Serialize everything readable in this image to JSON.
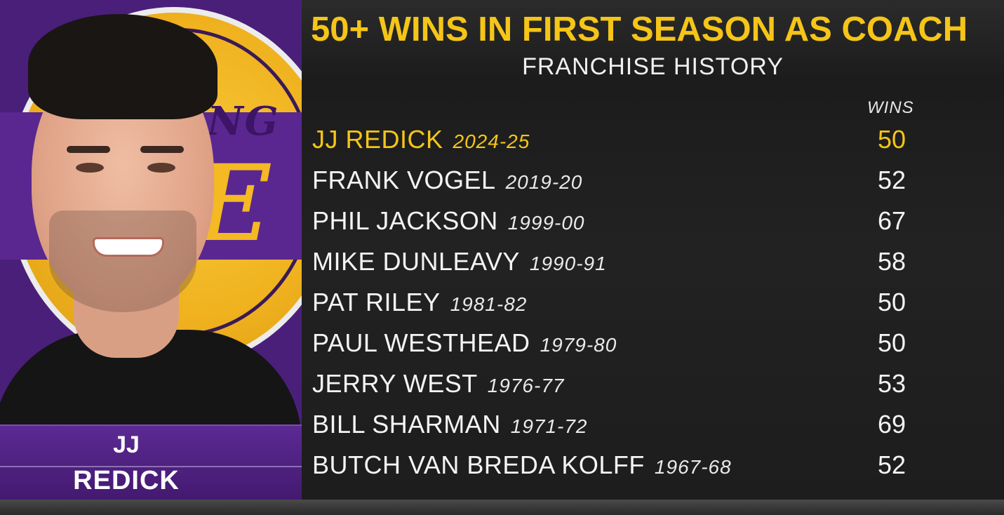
{
  "panel": {
    "first_name": "JJ",
    "last_name": "REDICK",
    "logo_text": "ANG",
    "logo_letters": "E",
    "accent_purple": "#552583",
    "accent_gold": "#FDB927"
  },
  "header": {
    "title": "50+ WINS IN FIRST SEASON AS COACH",
    "subtitle": "FRANCHISE HISTORY"
  },
  "table": {
    "wins_label": "WINS",
    "rows": [
      {
        "name": "JJ REDICK",
        "season": "2024-25",
        "wins": "50",
        "highlight": true
      },
      {
        "name": "FRANK VOGEL",
        "season": "2019-20",
        "wins": "52"
      },
      {
        "name": "PHIL JACKSON",
        "season": "1999-00",
        "wins": "67"
      },
      {
        "name": "MIKE DUNLEAVY",
        "season": "1990-91",
        "wins": "58"
      },
      {
        "name": "PAT RILEY",
        "season": "1981-82",
        "wins": "50"
      },
      {
        "name": "PAUL WESTHEAD",
        "season": "1979-80",
        "wins": "50"
      },
      {
        "name": "JERRY WEST",
        "season": "1976-77",
        "wins": "53"
      },
      {
        "name": "BILL SHARMAN",
        "season": "1971-72",
        "wins": "69"
      },
      {
        "name": "BUTCH VAN BREDA KOLFF",
        "season": "1967-68",
        "wins": "52"
      }
    ]
  },
  "colors": {
    "title_gold": "#F5C518",
    "highlight_gold": "#F5C518",
    "text_white": "#F4F4F4"
  }
}
